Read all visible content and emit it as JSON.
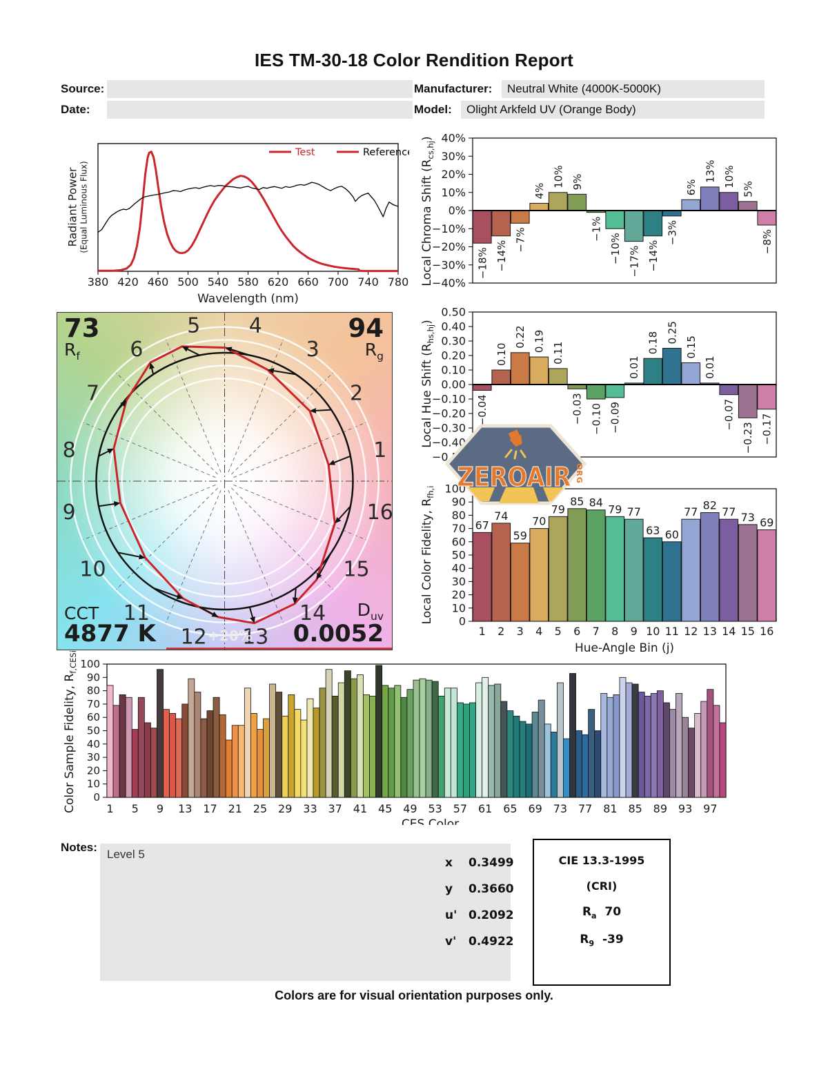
{
  "title": "IES TM-30-18 Color Rendition Report",
  "header": {
    "source_label": "Source:",
    "source_value": "",
    "date_label": "Date:",
    "date_value": "",
    "manufacturer_label": "Manufacturer:",
    "manufacturer_value": "Neutral White (4000K-5000K)",
    "model_label": "Model:",
    "model_value": "Olight Arkfeld UV (Orange Body)"
  },
  "colors": {
    "test_red": "#c9252b",
    "reference_black": "#000000",
    "field_gray": "#e6e6e6"
  },
  "bin_colors": [
    "#a84f60",
    "#b5624e",
    "#c97a47",
    "#d8ab5e",
    "#aca55a",
    "#819c55",
    "#5ca263",
    "#54bd96",
    "#62a99a",
    "#2d8184",
    "#2f7390",
    "#93a6d4",
    "#7f80bb",
    "#7c5d9f",
    "#9d7391",
    "#cf7fa7"
  ],
  "watermark": {
    "text": "ZEROAIR",
    "suffix": "ORG"
  },
  "notes": {
    "label": "Notes:",
    "text": "Level 5"
  },
  "chromaticity": {
    "rows": [
      {
        "label": "x",
        "value": "0.3499"
      },
      {
        "label": "y",
        "value": "0.3660"
      },
      {
        "label": "u'",
        "value": "0.2092"
      },
      {
        "label": "v'",
        "value": "0.4922"
      }
    ]
  },
  "cri_box": {
    "title": "CIE 13.3-1995",
    "subtitle": "(CRI)",
    "ra_main": "R",
    "ra_sub": "a",
    "ra_value": "70",
    "r9_main": "R",
    "r9_sub": "9",
    "r9_value": "-39"
  },
  "footer": "Colors are for visual orientation purposes only.",
  "chart_data": [
    {
      "id": "spd",
      "type": "line",
      "xlabel": "Wavelength (nm)",
      "ylabel": "Radiant Power",
      "ylabel2": "(Equal Luminous Flux)",
      "xlim": [
        380,
        780
      ],
      "ylim": [
        0,
        0.95
      ],
      "xticks": [
        380,
        420,
        460,
        500,
        540,
        580,
        620,
        660,
        700,
        740,
        780
      ],
      "legend": [
        "Test",
        "Reference"
      ],
      "series": [
        {
          "name": "Test",
          "color": "#c9252b",
          "width": 3,
          "x": [
            380,
            400,
            410,
            418,
            424,
            428,
            432,
            436,
            440,
            443,
            446,
            448,
            451,
            454,
            457,
            460,
            464,
            468,
            472,
            476,
            480,
            484,
            488,
            492,
            496,
            500,
            505,
            510,
            515,
            520,
            525,
            530,
            535,
            540,
            545,
            550,
            555,
            560,
            565,
            570,
            575,
            580,
            585,
            590,
            595,
            600,
            605,
            610,
            615,
            620,
            625,
            630,
            635,
            640,
            645,
            650,
            655,
            660,
            665,
            670,
            675,
            680,
            685,
            690,
            695,
            700,
            705,
            710,
            715,
            720,
            724,
            727,
            729,
            735,
            780
          ],
          "y": [
            0.004,
            0.004,
            0.008,
            0.02,
            0.05,
            0.1,
            0.19,
            0.33,
            0.55,
            0.72,
            0.84,
            0.88,
            0.89,
            0.85,
            0.76,
            0.64,
            0.49,
            0.37,
            0.28,
            0.22,
            0.175,
            0.15,
            0.138,
            0.135,
            0.14,
            0.155,
            0.19,
            0.24,
            0.3,
            0.36,
            0.42,
            0.475,
            0.525,
            0.565,
            0.6,
            0.635,
            0.66,
            0.685,
            0.7,
            0.71,
            0.705,
            0.69,
            0.665,
            0.63,
            0.59,
            0.545,
            0.495,
            0.445,
            0.395,
            0.345,
            0.3,
            0.26,
            0.225,
            0.19,
            0.163,
            0.14,
            0.12,
            0.1,
            0.086,
            0.073,
            0.062,
            0.053,
            0.046,
            0.04,
            0.034,
            0.03,
            0.026,
            0.023,
            0.02,
            0.018,
            0.016,
            0.015,
            0.004,
            0.002,
            0.002
          ]
        },
        {
          "name": "Reference",
          "color": "#000000",
          "width": 1.3,
          "x": [
            380,
            385,
            390,
            394,
            398,
            402,
            406,
            410,
            414,
            418,
            422,
            426,
            430,
            434,
            438,
            442,
            446,
            450,
            455,
            460,
            465,
            470,
            475,
            480,
            485,
            490,
            495,
            500,
            505,
            510,
            515,
            520,
            525,
            530,
            535,
            540,
            545,
            550,
            555,
            560,
            565,
            570,
            575,
            580,
            585,
            590,
            595,
            600,
            605,
            610,
            615,
            620,
            625,
            630,
            635,
            640,
            645,
            650,
            655,
            660,
            665,
            670,
            675,
            680,
            685,
            690,
            695,
            700,
            705,
            710,
            715,
            720,
            723,
            727,
            731,
            735,
            740,
            744,
            748,
            752,
            756,
            760,
            764,
            768,
            772,
            776,
            780
          ],
          "y": [
            0.29,
            0.31,
            0.355,
            0.39,
            0.415,
            0.43,
            0.445,
            0.455,
            0.462,
            0.458,
            0.468,
            0.488,
            0.508,
            0.525,
            0.543,
            0.553,
            0.558,
            0.563,
            0.568,
            0.572,
            0.578,
            0.585,
            0.59,
            0.6,
            0.598,
            0.593,
            0.605,
            0.612,
            0.618,
            0.622,
            0.616,
            0.625,
            0.632,
            0.638,
            0.632,
            0.638,
            0.638,
            0.632,
            0.63,
            0.628,
            0.623,
            0.62,
            0.627,
            0.632,
            0.62,
            0.614,
            0.608,
            0.623,
            0.618,
            0.625,
            0.63,
            0.624,
            0.618,
            0.63,
            0.624,
            0.63,
            0.64,
            0.645,
            0.64,
            0.65,
            0.662,
            0.655,
            0.645,
            0.628,
            0.612,
            0.6,
            0.615,
            0.627,
            0.632,
            0.614,
            0.588,
            0.553,
            0.52,
            0.545,
            0.562,
            0.572,
            0.582,
            0.555,
            0.53,
            0.492,
            0.45,
            0.405,
            0.47,
            0.515,
            0.5,
            0.49,
            0.483
          ]
        }
      ]
    },
    {
      "id": "chroma_shift",
      "type": "bar",
      "ylabel_main": "Local Chroma Shift (R",
      "ylabel_sub": "cs,hj",
      "ylabel_end": ")",
      "ylim": [
        -40,
        40
      ],
      "ytick_step": 10,
      "unit": "%",
      "categories": [
        1,
        2,
        3,
        4,
        5,
        6,
        7,
        8,
        9,
        10,
        11,
        12,
        13,
        14,
        15,
        16
      ],
      "values": [
        -18,
        -14,
        -7,
        4,
        10,
        9,
        -1,
        -10,
        -17,
        -14,
        -3,
        6,
        13,
        10,
        5,
        -8
      ]
    },
    {
      "id": "hue_shift",
      "type": "bar",
      "ylabel_main": "Local Hue Shift (R",
      "ylabel_sub": "hs,hj",
      "ylabel_end": ")",
      "ylim": [
        -0.5,
        0.5
      ],
      "ytick_step": 0.1,
      "categories": [
        1,
        2,
        3,
        4,
        5,
        6,
        7,
        8,
        9,
        10,
        11,
        12,
        13,
        14,
        15,
        16
      ],
      "values": [
        -0.04,
        0.1,
        0.22,
        0.19,
        0.11,
        -0.03,
        -0.1,
        -0.09,
        0.01,
        0.18,
        0.25,
        0.15,
        0.01,
        -0.07,
        -0.23,
        -0.17
      ]
    },
    {
      "id": "local_fidelity",
      "type": "bar",
      "ylabel_main": "Local Color Fidelity, R",
      "ylabel_sub": "fh,i",
      "xlabel": "Hue-Angle Bin (j)",
      "ylim": [
        0,
        100
      ],
      "ytick_step": 10,
      "categories": [
        1,
        2,
        3,
        4,
        5,
        6,
        7,
        8,
        9,
        10,
        11,
        12,
        13,
        14,
        15,
        16
      ],
      "values": [
        67,
        74,
        59,
        70,
        79,
        85,
        84,
        79,
        77,
        63,
        60,
        77,
        82,
        77,
        73,
        69
      ]
    },
    {
      "id": "ces_fidelity",
      "type": "bar",
      "ylabel_main": "Color Sample Fidelity, R",
      "ylabel_sub": "f,CESi",
      "xlabel": "CES Color",
      "ylim": [
        0,
        100
      ],
      "ytick_step": 10,
      "xticks": [
        1,
        5,
        9,
        13,
        17,
        21,
        25,
        29,
        33,
        37,
        41,
        45,
        49,
        53,
        57,
        61,
        65,
        69,
        73,
        77,
        81,
        85,
        89,
        93,
        97
      ],
      "values": [
        84,
        69,
        77,
        75,
        51,
        75,
        56,
        52,
        96,
        66,
        63,
        59,
        70,
        89,
        79,
        59,
        65,
        75,
        62,
        43,
        54,
        54,
        82,
        63,
        51,
        59,
        85,
        79,
        61,
        77,
        66,
        58,
        74,
        67,
        82,
        96,
        76,
        86,
        95,
        89,
        92,
        77,
        76,
        99,
        84,
        82,
        84,
        75,
        81,
        88,
        89,
        88,
        87,
        76,
        82,
        82,
        71,
        70,
        71,
        86,
        90,
        84,
        85,
        72,
        65,
        61,
        57,
        55,
        64,
        73,
        55,
        49,
        86,
        44,
        93,
        50,
        47,
        66,
        50,
        78,
        75,
        77,
        90,
        86,
        85,
        79,
        76,
        78,
        80,
        71,
        66,
        78,
        60,
        52,
        63,
        72,
        81,
        69,
        56
      ],
      "bar_colors": [
        "#efb9c6",
        "#c06e8a",
        "#6b3645",
        "#cf9ab1",
        "#a43c54",
        "#96495c",
        "#8e3b49",
        "#a04953",
        "#453a3c",
        "#e4604d",
        "#d95849",
        "#e06a55",
        "#8a4a38",
        "#c4a895",
        "#ab8574",
        "#8a5a44",
        "#6e452e",
        "#8a5c42",
        "#b4683a",
        "#e08030",
        "#f09048",
        "#f8b870",
        "#efd6b2",
        "#f0a045",
        "#e89038",
        "#d9a042",
        "#cbb58e",
        "#5e5038",
        "#f0d050",
        "#c8a430",
        "#f5d860",
        "#efe07a",
        "#efe8b4",
        "#b89a28",
        "#9a9440",
        "#d5d3b5",
        "#5a5c30",
        "#cfd8a0",
        "#3c4428",
        "#8a9a48",
        "#d8e0b8",
        "#a4c060",
        "#88b050",
        "#30382a",
        "#74a844",
        "#629c48",
        "#90c070",
        "#4e8840",
        "#6aa060",
        "#98c090",
        "#a8cfa0",
        "#86b088",
        "#3e6848",
        "#42a070",
        "#c8e8d8",
        "#c2e6d4",
        "#35ad85",
        "#2aa37c",
        "#30a888",
        "#d5efe2",
        "#e2f2ea",
        "#9ab8ac",
        "#8aa89a",
        "#46545a",
        "#2e8a80",
        "#1e7c78",
        "#267e80",
        "#1a6e74",
        "#5c8894",
        "#78909c",
        "#9cc4dc",
        "#2a7a9c",
        "#b8c4cc",
        "#3090c8",
        "#32363c",
        "#2a5e88",
        "#2e6da4",
        "#3a5e80",
        "#2c4a74",
        "#a8b8dc",
        "#98a8d4",
        "#8898cc",
        "#ccd4ec",
        "#a8aadc",
        "#3a3a42",
        "#6a5a9a",
        "#7c68a8",
        "#8a78b4",
        "#8060a0",
        "#5e4668",
        "#9c8aa8",
        "#b8a8bc",
        "#9a8498",
        "#6b4a66",
        "#d8bccc",
        "#c49ab4",
        "#a4537c",
        "#c2719a",
        "#b4487c"
      ]
    },
    {
      "id": "cvg",
      "type": "color_vector_graphic",
      "rf_value": "73",
      "rf_label_main": "R",
      "rf_label_sub": "f",
      "rg_value": "94",
      "rg_label_main": "R",
      "rg_label_sub": "g",
      "cct_label": "CCT",
      "cct_value": "4877 K",
      "duv_label_main": "D",
      "duv_label_sub": "uv",
      "duv_value": "0.0052",
      "ring_label": "+20%",
      "bin_labels": [
        "1",
        "2",
        "3",
        "4",
        "5",
        "6",
        "7",
        "8",
        "9",
        "10",
        "11",
        "12",
        "13",
        "14",
        "15",
        "16"
      ],
      "chroma_shift_pct": [
        -18,
        -14,
        -7,
        4,
        10,
        9,
        -1,
        -10,
        -17,
        -14,
        -3,
        6,
        13,
        10,
        5,
        -8
      ],
      "hue_shift": [
        -0.04,
        0.1,
        0.22,
        0.19,
        0.11,
        -0.03,
        -0.1,
        -0.09,
        0.01,
        0.18,
        0.25,
        0.15,
        0.01,
        -0.07,
        -0.23,
        -0.17
      ]
    }
  ]
}
